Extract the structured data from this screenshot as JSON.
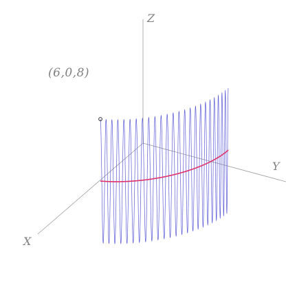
{
  "scene": {
    "axes": {
      "x_label": "X",
      "y_label": "Y",
      "z_label": "Z",
      "color": "#9a9a9a"
    },
    "surface": {
      "cylinder_radius": 6,
      "theta_range_deg": [
        0,
        90
      ],
      "height_range": [
        -8,
        8
      ],
      "oscillations": 24,
      "line_color": "#5a5ad8"
    },
    "circle_arc": {
      "z": 0,
      "color": "#e0306a"
    },
    "marked_point": {
      "label": "(6,0,8)",
      "coords": [
        6,
        0,
        8
      ]
    }
  }
}
